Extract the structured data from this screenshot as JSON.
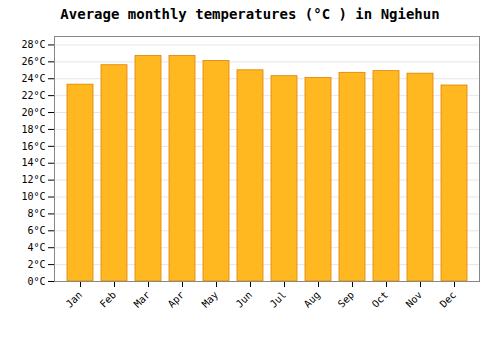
{
  "chart_data": {
    "type": "bar",
    "title": "Average monthly temperatures (°C ) in Ngiehun",
    "categories": [
      "Jan",
      "Feb",
      "Mar",
      "Apr",
      "May",
      "Jun",
      "Jul",
      "Aug",
      "Sep",
      "Oct",
      "Nov",
      "Dec"
    ],
    "values": [
      23.3,
      25.6,
      26.7,
      26.7,
      26.1,
      25.0,
      24.3,
      24.1,
      24.7,
      24.9,
      24.6,
      23.2
    ],
    "color": "#FFB820",
    "ylim": [
      0,
      29
    ],
    "yticks": [
      {
        "value": 0,
        "label": "0°C"
      },
      {
        "value": 2,
        "label": "2°C"
      },
      {
        "value": 4,
        "label": "4°C"
      },
      {
        "value": 6,
        "label": "6°C"
      },
      {
        "value": 8,
        "label": "8°C"
      },
      {
        "value": 10,
        "label": "10°C"
      },
      {
        "value": 12,
        "label": "12°C"
      },
      {
        "value": 14,
        "label": "14°C"
      },
      {
        "value": 16,
        "label": "16°C"
      },
      {
        "value": 18,
        "label": "18°C"
      },
      {
        "value": 20,
        "label": "20°C"
      },
      {
        "value": 22,
        "label": "22°C"
      },
      {
        "value": 24,
        "label": "24°C"
      },
      {
        "value": 26,
        "label": "26°C"
      },
      {
        "value": 28,
        "label": "28°C"
      }
    ],
    "grid": true
  }
}
